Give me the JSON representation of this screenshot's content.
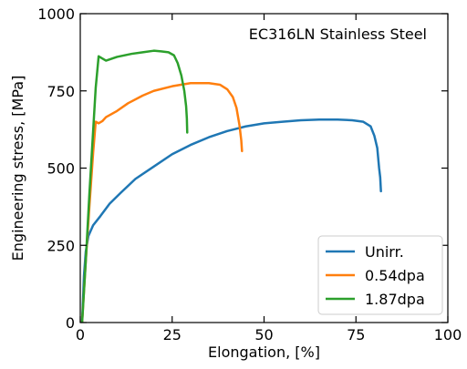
{
  "chart_data": {
    "type": "line",
    "title": "EC316LN Stainless Steel",
    "xlabel": "Elongation, [%]",
    "ylabel": "Engineering stress, [MPa]",
    "xlim": [
      0,
      100
    ],
    "ylim": [
      0,
      1000
    ],
    "x_ticks": [
      0,
      25,
      50,
      75,
      100
    ],
    "y_ticks": [
      0,
      250,
      500,
      750,
      1000
    ],
    "grid": false,
    "legend_position": "bottom-right",
    "series": [
      {
        "name": "Unirr.",
        "color": "#1f77b4",
        "points": [
          [
            0.5,
            0
          ],
          [
            1.0,
            150
          ],
          [
            1.5,
            230
          ],
          [
            2.2,
            280
          ],
          [
            3.5,
            315
          ],
          [
            5.5,
            345
          ],
          [
            8,
            385
          ],
          [
            11,
            420
          ],
          [
            15,
            465
          ],
          [
            20,
            505
          ],
          [
            25,
            545
          ],
          [
            30,
            575
          ],
          [
            35,
            600
          ],
          [
            40,
            620
          ],
          [
            45,
            635
          ],
          [
            50,
            645
          ],
          [
            55,
            650
          ],
          [
            60,
            655
          ],
          [
            65,
            657
          ],
          [
            70,
            657
          ],
          [
            74,
            655
          ],
          [
            77,
            650
          ],
          [
            79,
            635
          ],
          [
            80,
            605
          ],
          [
            80.8,
            565
          ],
          [
            81.3,
            500
          ],
          [
            81.6,
            470
          ],
          [
            81.8,
            425
          ]
        ]
      },
      {
        "name": "0.54dpa",
        "color": "#ff7f0e",
        "points": [
          [
            0.5,
            0
          ],
          [
            1.5,
            200
          ],
          [
            2.5,
            380
          ],
          [
            3.5,
            550
          ],
          [
            4.2,
            650
          ],
          [
            5,
            645
          ],
          [
            6,
            652
          ],
          [
            7,
            665
          ],
          [
            10,
            685
          ],
          [
            13,
            710
          ],
          [
            17,
            735
          ],
          [
            20,
            750
          ],
          [
            25,
            765
          ],
          [
            30,
            775
          ],
          [
            35,
            775
          ],
          [
            38,
            770
          ],
          [
            40,
            755
          ],
          [
            41.5,
            730
          ],
          [
            42.5,
            695
          ],
          [
            43.3,
            640
          ],
          [
            43.8,
            590
          ],
          [
            44,
            555
          ]
        ]
      },
      {
        "name": "1.87dpa",
        "color": "#2ca02c",
        "points": [
          [
            0.5,
            0
          ],
          [
            1.5,
            200
          ],
          [
            2.5,
            420
          ],
          [
            3.5,
            620
          ],
          [
            4.2,
            760
          ],
          [
            5,
            862
          ],
          [
            6,
            855
          ],
          [
            7,
            848
          ],
          [
            8,
            852
          ],
          [
            10,
            860
          ],
          [
            14,
            870
          ],
          [
            17,
            875
          ],
          [
            20,
            880
          ],
          [
            22,
            878
          ],
          [
            24,
            875
          ],
          [
            25.5,
            865
          ],
          [
            26.5,
            840
          ],
          [
            27.5,
            800
          ],
          [
            28.3,
            750
          ],
          [
            28.8,
            700
          ],
          [
            29,
            660
          ],
          [
            29.1,
            615
          ]
        ]
      }
    ]
  }
}
